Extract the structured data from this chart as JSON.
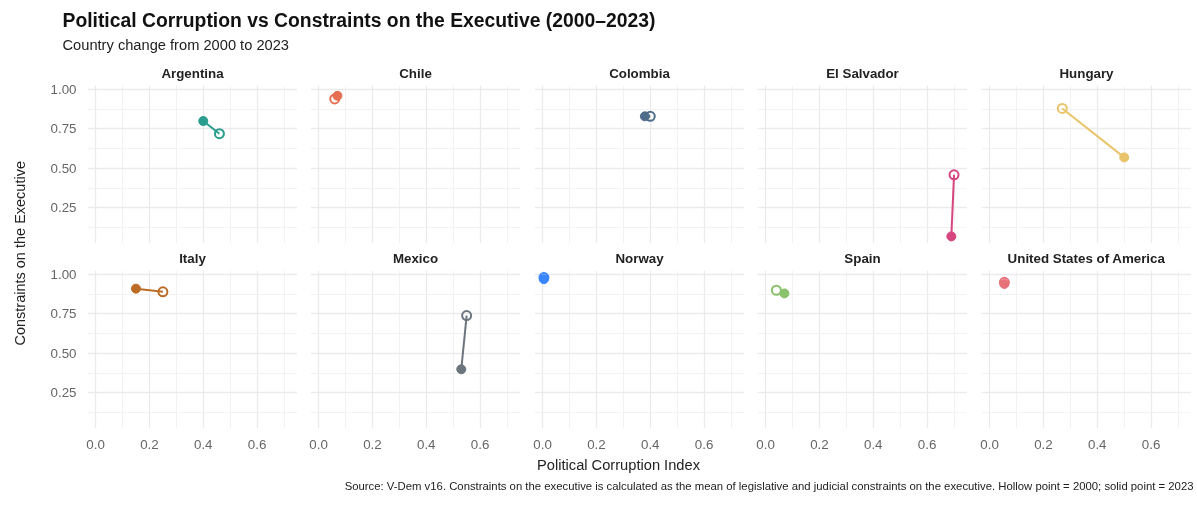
{
  "chart_data": [
    {
      "type": "other",
      "title": "Political Corruption vs Constraints on the Executive (2000–2023)",
      "subtitle": "Country change from 2000 to 2023",
      "xlabel": "Political Corruption Index",
      "ylabel": "Constraints on the Executive",
      "annotations": [
        "Source: V-Dem v16. Constraints on the executive is calculated as the mean of legislative and judicial constraints on the executive. Hollow point = 2000; solid point = 2023"
      ]
    },
    {
      "type": "line",
      "title": "Argentina",
      "xlim": [
        -0.03,
        0.75
      ],
      "ylim": [
        0.025,
        1.025
      ],
      "xticks": [
        0,
        0.2,
        0.4,
        0.6
      ],
      "yticks": [
        {
          "value": 0.25,
          "label": "0.25"
        },
        {
          "value": 0.5,
          "label": "0.50"
        },
        {
          "value": 0.75,
          "label": "0.75"
        },
        {
          "value": 1,
          "label": "1.00"
        }
      ],
      "grid": true,
      "marker": "circle",
      "tick_labels": "y",
      "series": [
        {
          "color": "#2a9d8f",
          "x": [
            0.46,
            0.4
          ],
          "values": [
            0.72,
            0.8
          ]
        }
      ]
    },
    {
      "type": "line",
      "title": "Chile",
      "xlim": [
        -0.03,
        0.75
      ],
      "ylim": [
        0.025,
        1.025
      ],
      "xticks": [
        0,
        0.2,
        0.4,
        0.6
      ],
      "yticks": [
        0.25,
        0.5,
        0.75,
        1
      ],
      "grid": true,
      "marker": "circle",
      "tick_labels": false,
      "series": [
        {
          "type": "scatter",
          "color": "#e76f51",
          "x": [
            0.06,
            0.07
          ],
          "values": [
            0.94,
            0.96
          ]
        }
      ]
    },
    {
      "type": "line",
      "title": "Colombia",
      "xlim": [
        -0.03,
        0.75
      ],
      "ylim": [
        0.025,
        1.025
      ],
      "xticks": [
        0,
        0.2,
        0.4,
        0.6
      ],
      "yticks": [
        0.25,
        0.5,
        0.75,
        1
      ],
      "grid": true,
      "marker": "circle",
      "tick_labels": false,
      "series": [
        {
          "color": "#4f6d8a",
          "x": [
            0.4,
            0.38
          ],
          "values": [
            0.83,
            0.83
          ]
        }
      ]
    },
    {
      "type": "line",
      "title": "El Salvador",
      "xlim": [
        -0.03,
        0.75
      ],
      "ylim": [
        0.025,
        1.025
      ],
      "xticks": [
        0,
        0.2,
        0.4,
        0.6
      ],
      "yticks": [
        0.25,
        0.5,
        0.75,
        1
      ],
      "grid": true,
      "marker": "circle",
      "tick_labels": false,
      "series": [
        {
          "color": "#d6457f",
          "x": [
            0.7,
            0.69
          ],
          "values": [
            0.46,
            0.07
          ]
        }
      ]
    },
    {
      "type": "line",
      "title": "Hungary",
      "xlim": [
        -0.03,
        0.75
      ],
      "ylim": [
        0.025,
        1.025
      ],
      "xticks": [
        0,
        0.2,
        0.4,
        0.6
      ],
      "yticks": [
        0.25,
        0.5,
        0.75,
        1
      ],
      "grid": true,
      "marker": "circle",
      "tick_labels": false,
      "series": [
        {
          "color": "#e9c46a",
          "x": [
            0.27,
            0.5
          ],
          "values": [
            0.88,
            0.57
          ]
        }
      ]
    },
    {
      "type": "line",
      "title": "Italy",
      "xlim": [
        -0.03,
        0.75
      ],
      "ylim": [
        0.025,
        1.025
      ],
      "xticks": [
        {
          "value": 0,
          "label": "0.0"
        },
        {
          "value": 0.2,
          "label": "0.2"
        },
        {
          "value": 0.4,
          "label": "0.4"
        },
        {
          "value": 0.6,
          "label": "0.6"
        }
      ],
      "yticks": [
        {
          "value": 0.25,
          "label": "0.25"
        },
        {
          "value": 0.5,
          "label": "0.50"
        },
        {
          "value": 0.75,
          "label": "0.75"
        },
        {
          "value": 1,
          "label": "1.00"
        }
      ],
      "grid": true,
      "marker": "circle",
      "series": [
        {
          "color": "#bc6c25",
          "x": [
            0.25,
            0.15
          ],
          "values": [
            0.89,
            0.91
          ]
        }
      ]
    },
    {
      "type": "line",
      "title": "Mexico",
      "xlim": [
        -0.03,
        0.75
      ],
      "ylim": [
        0.025,
        1.025
      ],
      "xticks": [
        {
          "value": 0,
          "label": "0.0"
        },
        {
          "value": 0.2,
          "label": "0.2"
        },
        {
          "value": 0.4,
          "label": "0.4"
        },
        {
          "value": 0.6,
          "label": "0.6"
        }
      ],
      "yticks": [
        0.25,
        0.5,
        0.75,
        1
      ],
      "grid": true,
      "marker": "circle",
      "tick_labels": "x",
      "series": [
        {
          "color": "#6c757d",
          "x": [
            0.55,
            0.53
          ],
          "values": [
            0.74,
            0.4
          ]
        }
      ]
    },
    {
      "type": "line",
      "title": "Norway",
      "xlim": [
        -0.03,
        0.75
      ],
      "ylim": [
        0.025,
        1.025
      ],
      "xticks": [
        {
          "value": 0,
          "label": "0.0"
        },
        {
          "value": 0.2,
          "label": "0.2"
        },
        {
          "value": 0.4,
          "label": "0.4"
        },
        {
          "value": 0.6,
          "label": "0.6"
        }
      ],
      "yticks": [
        0.25,
        0.5,
        0.75,
        1
      ],
      "grid": true,
      "marker": "circle",
      "tick_labels": "x",
      "series": [
        {
          "type": "scatter",
          "color": "#3a86ff",
          "x": [
            0.005,
            0.005
          ],
          "values": [
            0.98,
            0.97
          ]
        }
      ]
    },
    {
      "type": "line",
      "title": "Spain",
      "xlim": [
        -0.03,
        0.75
      ],
      "ylim": [
        0.025,
        1.025
      ],
      "xticks": [
        {
          "value": 0,
          "label": "0.0"
        },
        {
          "value": 0.2,
          "label": "0.2"
        },
        {
          "value": 0.4,
          "label": "0.4"
        },
        {
          "value": 0.6,
          "label": "0.6"
        }
      ],
      "yticks": [
        0.25,
        0.5,
        0.75,
        1
      ],
      "grid": true,
      "marker": "circle",
      "tick_labels": "x",
      "series": [
        {
          "type": "scatter",
          "color": "#8ac26b",
          "x": [
            0.04,
            0.07
          ],
          "values": [
            0.9,
            0.88
          ]
        }
      ]
    },
    {
      "type": "line",
      "title": "United States of America",
      "xlim": [
        -0.03,
        0.75
      ],
      "ylim": [
        0.025,
        1.025
      ],
      "xticks": [
        {
          "value": 0,
          "label": "0.0"
        },
        {
          "value": 0.2,
          "label": "0.2"
        },
        {
          "value": 0.4,
          "label": "0.4"
        },
        {
          "value": 0.6,
          "label": "0.6"
        }
      ],
      "yticks": [
        0.25,
        0.5,
        0.75,
        1
      ],
      "grid": true,
      "marker": "circle",
      "tick_labels": "x",
      "series": [
        {
          "type": "scatter",
          "color": "#e8727a",
          "x": [
            0.055,
            0.055
          ],
          "values": [
            0.95,
            0.94
          ]
        }
      ]
    }
  ]
}
